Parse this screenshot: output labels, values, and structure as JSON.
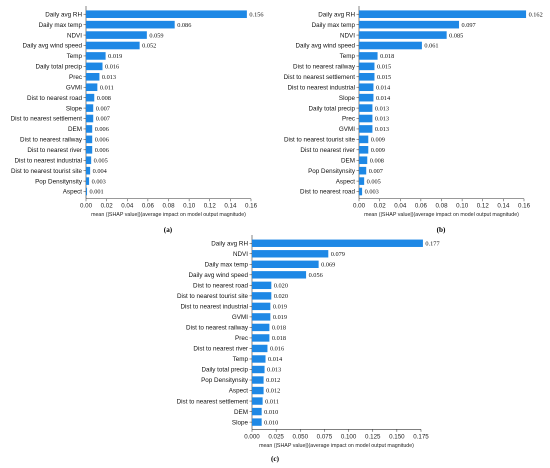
{
  "xlabel": "mean (|SHAP value|)(average impact on model output magnitude)",
  "bar_color": "#1e88e5",
  "axis_color": "#333333",
  "chart_data": [
    {
      "panel_label": "(a)",
      "type": "bar",
      "orientation": "horizontal",
      "xlabel": "mean (|SHAP value|)(average impact on model output magnitude)",
      "xlim": [
        0,
        0.16
      ],
      "xticks": [
        "0.00",
        "0.02",
        "0.04",
        "0.06",
        "0.08",
        "0.10",
        "0.12",
        "0.14",
        "0.16"
      ],
      "xtick_values": [
        0,
        0.02,
        0.04,
        0.06,
        0.08,
        0.1,
        0.12,
        0.14,
        0.16
      ],
      "categories": [
        "Daily avg RH",
        "Daily max temp",
        "NDVI",
        "Daily avg wind speed",
        "Temp",
        "Daily total precip",
        "Prec",
        "GVMI",
        "Dist to nearest road",
        "Slope",
        "Dist to nearest settlement",
        "DEM",
        "Dist to nearest railway",
        "Dist to nearest river",
        "Dist to nearest industrial",
        "Dist to nearest tourist site",
        "Pop  Densitynsity",
        "Aspect"
      ],
      "values": [
        0.156,
        0.086,
        0.059,
        0.052,
        0.019,
        0.016,
        0.013,
        0.011,
        0.008,
        0.007,
        0.007,
        0.006,
        0.006,
        0.006,
        0.005,
        0.004,
        0.003,
        0.001
      ],
      "value_labels": [
        "0.156",
        "0.086",
        "0.059",
        "0.052",
        "0.019",
        "0.016",
        "0.013",
        "0.011",
        "0.008",
        "0.007",
        "0.007",
        "0.006",
        "0.006",
        "0.006",
        "0.005",
        "0.004",
        "0.003",
        "0.001"
      ]
    },
    {
      "panel_label": "(b)",
      "type": "bar",
      "orientation": "horizontal",
      "xlabel": "mean (|SHAP value|)(average impact on model output magnitude)",
      "xlim": [
        0,
        0.16
      ],
      "xticks": [
        "0.00",
        "0.02",
        "0.04",
        "0.06",
        "0.08",
        "0.10",
        "0.12",
        "0.14",
        "0.16"
      ],
      "xtick_values": [
        0,
        0.02,
        0.04,
        0.06,
        0.08,
        0.1,
        0.12,
        0.14,
        0.16
      ],
      "categories": [
        "Daily avg RH",
        "Daily max temp",
        "NDVI",
        "Daily avg wind speed",
        "Temp",
        "Dist to nearest railway",
        "Dist to nearest settlement",
        "Dist to nearest industrial",
        "Slope",
        "Daily total precip",
        "Prec",
        "GVMI",
        "Dist to nearest tourist site",
        "Dist to nearest river",
        "DEM",
        "Pop  Densitynsity",
        "Aspect",
        "Dist to nearest road"
      ],
      "values": [
        0.162,
        0.097,
        0.085,
        0.061,
        0.018,
        0.015,
        0.015,
        0.014,
        0.014,
        0.013,
        0.013,
        0.013,
        0.009,
        0.009,
        0.008,
        0.007,
        0.005,
        0.003
      ],
      "value_labels": [
        "0.162",
        "0.097",
        "0.085",
        "0.061",
        "0.018",
        "0.015",
        "0.015",
        "0.014",
        "0.014",
        "0.013",
        "0.013",
        "0.013",
        "0.009",
        "0.009",
        "0.008",
        "0.007",
        "0.005",
        "0.003"
      ]
    },
    {
      "panel_label": "(c)",
      "type": "bar",
      "orientation": "horizontal",
      "xlabel": "mean (|SHAP value|)(average impact on model output magnitude)",
      "xlim": [
        0,
        0.175
      ],
      "xticks": [
        "0.000",
        "0.025",
        "0.050",
        "0.075",
        "0.100",
        "0.125",
        "0.150",
        "0.175"
      ],
      "xtick_values": [
        0,
        0.025,
        0.05,
        0.075,
        0.1,
        0.125,
        0.15,
        0.175
      ],
      "categories": [
        "Daily avg RH",
        "NDVI",
        "Daily max temp",
        "Daily avg wind speed",
        "Dist to nearest road",
        "Dist to nearest tourist site",
        "Dist to nearest industrial",
        "GVMI",
        "Dist to nearest railway",
        "Prec",
        "Dist to nearest river",
        "Temp",
        "Daily total precip",
        "Pop  Densitynsity",
        "Aspect",
        "Dist to nearest settlement",
        "DEM",
        "Slope"
      ],
      "values": [
        0.177,
        0.079,
        0.069,
        0.056,
        0.02,
        0.02,
        0.019,
        0.019,
        0.018,
        0.018,
        0.016,
        0.014,
        0.013,
        0.012,
        0.012,
        0.011,
        0.01,
        0.01
      ],
      "value_labels": [
        "0.177",
        "0.079",
        "0.069",
        "0.056",
        "0.020",
        "0.020",
        "0.019",
        "0.019",
        "0.018",
        "0.018",
        "0.016",
        "0.014",
        "0.013",
        "0.012",
        "0.012",
        "0.011",
        "0.010",
        "0.010"
      ]
    }
  ]
}
